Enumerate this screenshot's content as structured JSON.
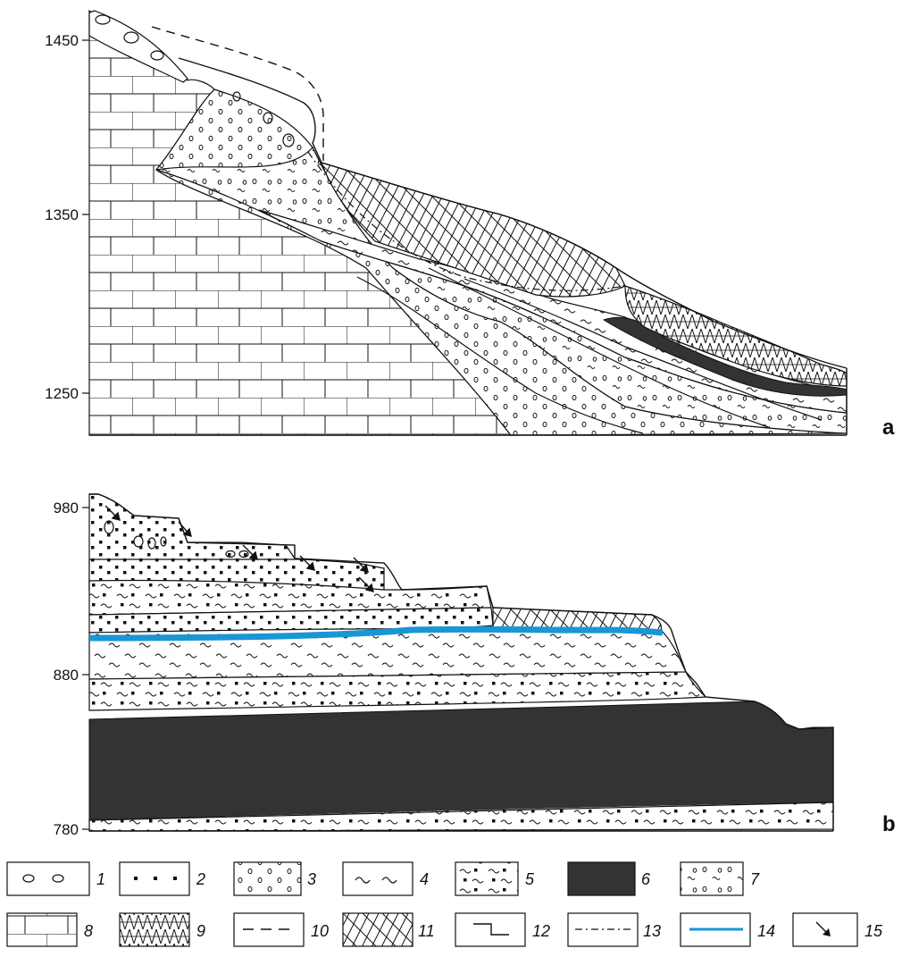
{
  "panel_a": {
    "label": "a",
    "y_ticks": [
      "1450",
      "1350",
      "1250"
    ]
  },
  "panel_b": {
    "label": "b",
    "y_ticks": [
      "980",
      "880",
      "780"
    ]
  },
  "legend": [
    {
      "num": "1",
      "icon": "boulders-icon"
    },
    {
      "num": "2",
      "icon": "sand-dots-icon"
    },
    {
      "num": "3",
      "icon": "gravel-icon"
    },
    {
      "num": "4",
      "icon": "loam-tilde-icon"
    },
    {
      "num": "5",
      "icon": "sandy-loam-icon"
    },
    {
      "num": "6",
      "icon": "dark-fill-icon"
    },
    {
      "num": "7",
      "icon": "pebbly-loam-icon"
    },
    {
      "num": "8",
      "icon": "bedrock-brick-icon"
    },
    {
      "num": "9",
      "icon": "zigzag-hatch-icon"
    },
    {
      "num": "10",
      "icon": "dashed-line-icon"
    },
    {
      "num": "11",
      "icon": "cross-hatch-icon"
    },
    {
      "num": "12",
      "icon": "step-line-icon"
    },
    {
      "num": "13",
      "icon": "dash-dot-line-icon"
    },
    {
      "num": "14",
      "icon": "blue-line-icon"
    },
    {
      "num": "15",
      "icon": "arrow-icon"
    }
  ],
  "colors": {
    "ink": "#111111",
    "dark_layer": "#333333",
    "water": "#1a96d4"
  }
}
